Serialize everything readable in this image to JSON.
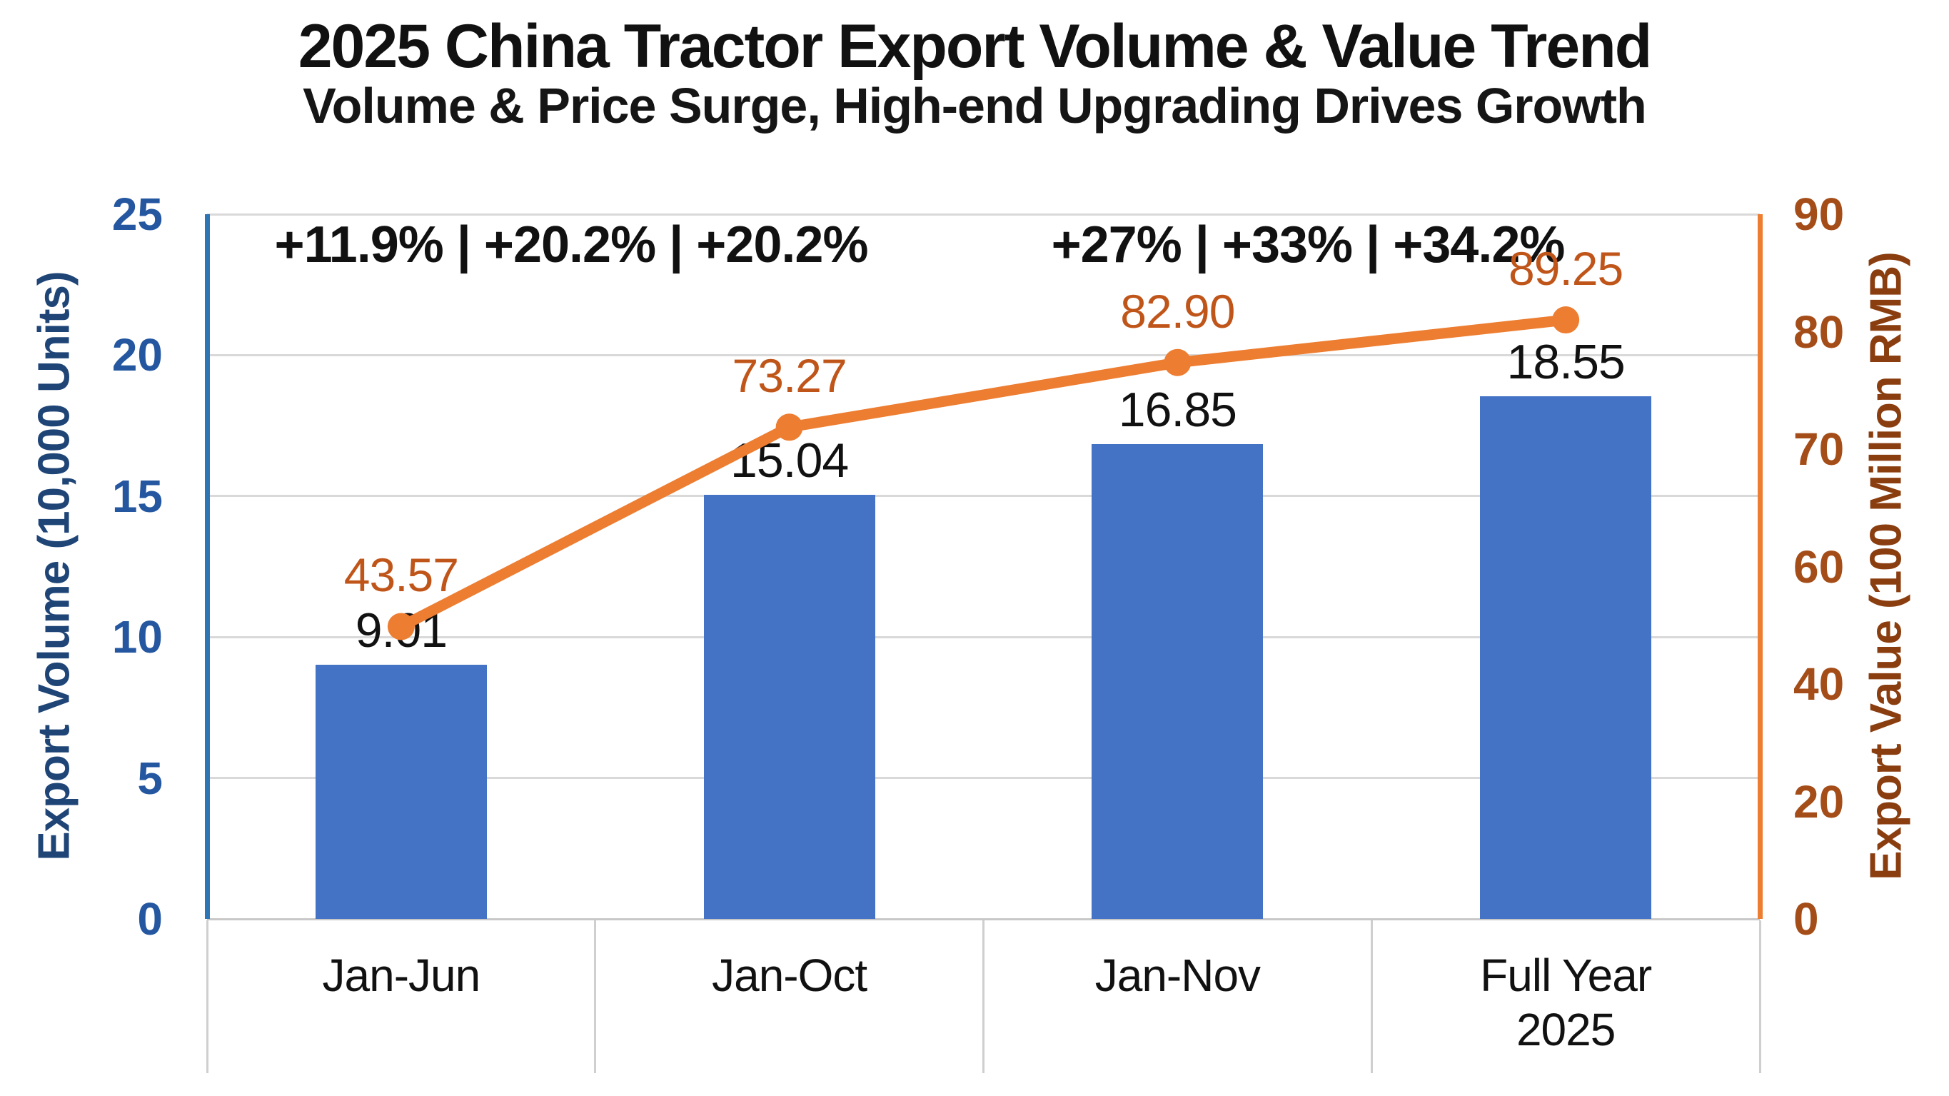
{
  "title": "2025 China Tractor Export Volume & Value Trend",
  "subtitle": "Volume & Price Surge, High-end Upgrading Drives Growth",
  "annotations": {
    "left_group": "+11.9% | +20.2% | +20.2%",
    "right_group": "+27% | +33% | +34.2%"
  },
  "chart_data": {
    "type": "bar",
    "combo": "bar+line dual-axis",
    "title": "2025 China Tractor Export Volume & Value Trend",
    "subtitle": "Volume & Price Surge, High-end Upgrading Drives Growth",
    "categories": [
      "Jan-Jun",
      "Jan-Oct",
      "Jan-Nov",
      "Full Year 2025"
    ],
    "series": [
      {
        "name": "Export Volume",
        "chart": "bar",
        "axis": "left",
        "values": [
          9.01,
          15.04,
          16.85,
          18.55
        ],
        "value_labels": [
          "9.01",
          "15.04",
          "16.85",
          "18.55"
        ],
        "color": "#4472C4"
      },
      {
        "name": "Export Value",
        "chart": "line",
        "axis": "right",
        "values": [
          43.57,
          73.27,
          82.9,
          89.25
        ],
        "value_labels": [
          "43.57",
          "73.27",
          "82.90",
          "89.25"
        ],
        "color": "#ED7D31"
      }
    ],
    "left_axis": {
      "title": "Export Volume (10,000 Units)",
      "ticks": [
        "25",
        "20",
        "15",
        "10",
        "5",
        "0"
      ],
      "range": [
        0,
        25
      ],
      "tick_color": "#2457A0",
      "title_color": "#1F4577",
      "line_color": "#2E75B6"
    },
    "right_axis": {
      "title": "Export Value (100 Million RMB)",
      "ticks": [
        "90",
        "80",
        "70",
        "60",
        "40",
        "20",
        "0"
      ],
      "range": [
        0,
        90
      ],
      "tick_color": "#A44D18",
      "title_color": "#8A3E10",
      "line_color": "#ED7D31"
    },
    "growth_annotations": [
      "+11.9% | +20.2% | +20.2%",
      "+27% | +33% | +34.2%"
    ],
    "grid": "horizontal gridlines on",
    "legend": "none",
    "point_label_color": "#C0551A",
    "grid_color": "#D9D9D9",
    "baseline_color": "#C8C8C8"
  }
}
